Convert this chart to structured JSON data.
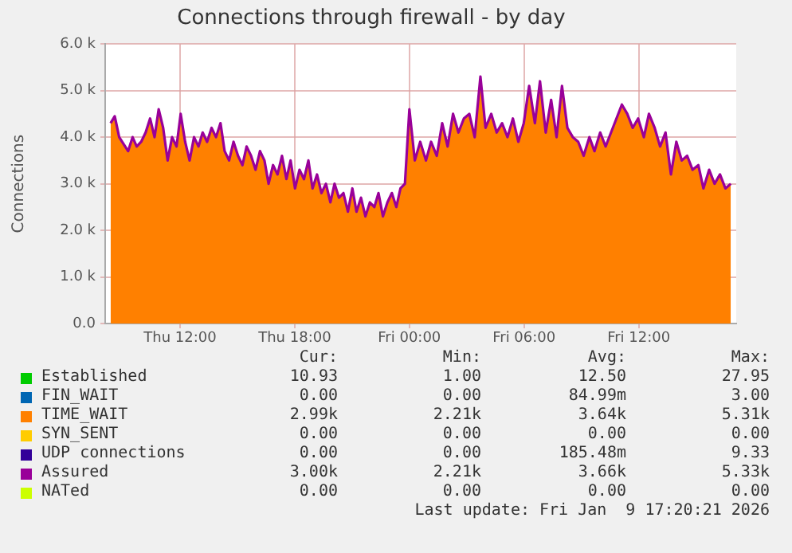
{
  "chart_data": {
    "type": "area",
    "title": "Connections through firewall - by day",
    "ylabel": "Connections",
    "xlim": [
      "2026-01-08T08:05",
      "2026-01-09T17:06"
    ],
    "xticks": [
      {
        "value": "2026-01-08T12:00",
        "label": "Thu 12:00"
      },
      {
        "value": "2026-01-08T18:00",
        "label": "Thu 18:00"
      },
      {
        "value": "2026-01-09T00:00",
        "label": "Fri 00:00"
      },
      {
        "value": "2026-01-09T06:00",
        "label": "Fri 06:00"
      },
      {
        "value": "2026-01-09T12:00",
        "label": "Fri 12:00"
      }
    ],
    "ylim": [
      0,
      6000
    ],
    "yticks": [
      {
        "value": 0,
        "label": "0.0"
      },
      {
        "value": 1000,
        "label": "1.0 k"
      },
      {
        "value": 2000,
        "label": "2.0 k"
      },
      {
        "value": 3000,
        "label": "3.0 k"
      },
      {
        "value": 4000,
        "label": "4.0 k"
      },
      {
        "value": 5000,
        "label": "5.0 k"
      },
      {
        "value": 6000,
        "label": "6.0 k"
      }
    ],
    "grid": true,
    "legend": "bottom",
    "x": [
      "2026-01-08T08:22",
      "2026-01-08T08:35",
      "2026-01-08T08:49",
      "2026-01-08T09:03",
      "2026-01-08T09:17",
      "2026-01-08T09:31",
      "2026-01-08T09:44",
      "2026-01-08T09:58",
      "2026-01-08T10:12",
      "2026-01-08T10:26",
      "2026-01-08T10:40",
      "2026-01-08T10:53",
      "2026-01-08T11:07",
      "2026-01-08T11:21",
      "2026-01-08T11:35",
      "2026-01-08T11:49",
      "2026-01-08T12:02",
      "2026-01-08T12:16",
      "2026-01-08T12:30",
      "2026-01-08T12:44",
      "2026-01-08T12:58",
      "2026-01-08T13:11",
      "2026-01-08T13:25",
      "2026-01-08T13:39",
      "2026-01-08T13:53",
      "2026-01-08T14:07",
      "2026-01-08T14:20",
      "2026-01-08T14:34",
      "2026-01-08T14:48",
      "2026-01-08T15:02",
      "2026-01-08T15:16",
      "2026-01-08T15:29",
      "2026-01-08T15:43",
      "2026-01-08T15:57",
      "2026-01-08T16:11",
      "2026-01-08T16:25",
      "2026-01-08T16:38",
      "2026-01-08T16:52",
      "2026-01-08T17:06",
      "2026-01-08T17:20",
      "2026-01-08T17:34",
      "2026-01-08T17:47",
      "2026-01-08T18:01",
      "2026-01-08T18:15",
      "2026-01-08T18:29",
      "2026-01-08T18:43",
      "2026-01-08T18:56",
      "2026-01-08T19:10",
      "2026-01-08T19:24",
      "2026-01-08T19:38",
      "2026-01-08T19:52",
      "2026-01-08T20:05",
      "2026-01-08T20:19",
      "2026-01-08T20:33",
      "2026-01-08T20:47",
      "2026-01-08T21:01",
      "2026-01-08T21:14",
      "2026-01-08T21:28",
      "2026-01-08T21:42",
      "2026-01-08T21:56",
      "2026-01-08T22:10",
      "2026-01-08T22:23",
      "2026-01-08T22:37",
      "2026-01-08T22:51",
      "2026-01-08T23:05",
      "2026-01-08T23:19",
      "2026-01-08T23:32",
      "2026-01-08T23:46",
      "2026-01-09T00:00",
      "2026-01-09T00:17",
      "2026-01-09T00:34",
      "2026-01-09T00:52",
      "2026-01-09T01:08",
      "2026-01-09T01:26",
      "2026-01-09T01:43",
      "2026-01-09T02:00",
      "2026-01-09T02:17",
      "2026-01-09T02:34",
      "2026-01-09T02:51",
      "2026-01-09T03:08",
      "2026-01-09T03:25",
      "2026-01-09T03:43",
      "2026-01-09T03:59",
      "2026-01-09T04:17",
      "2026-01-09T04:34",
      "2026-01-09T04:51",
      "2026-01-09T05:08",
      "2026-01-09T05:25",
      "2026-01-09T05:42",
      "2026-01-09T05:59",
      "2026-01-09T06:16",
      "2026-01-09T06:34",
      "2026-01-09T06:50",
      "2026-01-09T07:08",
      "2026-01-09T07:25",
      "2026-01-09T07:42",
      "2026-01-09T07:59",
      "2026-01-09T08:16",
      "2026-01-09T08:33",
      "2026-01-09T08:50",
      "2026-01-09T09:07",
      "2026-01-09T09:25",
      "2026-01-09T09:41",
      "2026-01-09T09:59",
      "2026-01-09T10:16",
      "2026-01-09T10:33",
      "2026-01-09T10:50",
      "2026-01-09T11:07",
      "2026-01-09T11:24",
      "2026-01-09T11:41",
      "2026-01-09T11:58",
      "2026-01-09T12:16",
      "2026-01-09T12:32",
      "2026-01-09T12:50",
      "2026-01-09T13:07",
      "2026-01-09T13:24",
      "2026-01-09T13:41",
      "2026-01-09T13:58",
      "2026-01-09T14:15",
      "2026-01-09T14:32",
      "2026-01-09T14:49",
      "2026-01-09T15:07",
      "2026-01-09T15:23",
      "2026-01-09T15:41",
      "2026-01-09T15:58",
      "2026-01-09T16:15",
      "2026-01-09T16:32",
      "2026-01-09T16:49"
    ],
    "series": [
      {
        "name": "Established",
        "color": "#00cc00",
        "type": "line",
        "values": [
          null,
          null,
          null,
          null,
          null,
          null,
          null,
          null,
          null,
          null,
          null,
          null,
          null,
          null,
          null,
          null,
          null,
          null,
          null,
          null,
          null,
          null,
          null,
          null,
          null,
          null,
          null,
          null,
          null,
          null,
          null,
          null,
          null,
          null,
          null,
          null,
          null,
          null,
          null,
          null,
          null,
          null,
          null,
          null,
          null,
          null,
          null,
          null,
          null,
          null,
          null,
          null,
          null,
          null,
          null,
          null,
          null,
          null,
          null,
          null,
          null,
          null,
          null,
          null,
          null,
          null,
          null,
          null,
          null,
          null,
          null,
          null,
          null,
          null,
          null,
          null,
          null,
          null,
          null,
          null,
          null,
          null,
          null,
          null,
          null,
          null,
          null,
          null,
          null,
          null,
          null,
          null,
          null,
          null,
          null,
          null,
          null,
          null,
          null,
          null,
          null,
          null,
          null,
          null,
          null,
          null,
          null,
          null,
          null,
          null,
          null,
          null,
          null,
          null,
          null,
          null,
          null,
          null,
          null,
          null,
          null,
          null,
          null,
          null,
          null,
          null,
          null,
          null
        ]
      },
      {
        "name": "FIN_WAIT",
        "color": "#0066b3",
        "type": "line",
        "values": [
          null,
          null,
          null,
          null,
          null,
          null,
          null,
          null,
          null,
          null,
          null,
          null,
          null,
          null,
          null,
          null,
          null,
          null,
          null,
          null,
          null,
          null,
          null,
          null,
          null,
          null,
          null,
          null,
          null,
          null,
          null,
          null,
          null,
          null,
          null,
          null,
          null,
          null,
          null,
          null,
          null,
          null,
          null,
          null,
          null,
          null,
          null,
          null,
          null,
          null,
          null,
          null,
          null,
          null,
          null,
          null,
          null,
          null,
          null,
          null,
          null,
          null,
          null,
          null,
          null,
          null,
          null,
          null,
          null,
          null,
          null,
          null,
          null,
          null,
          null,
          null,
          null,
          null,
          null,
          null,
          null,
          null,
          null,
          null,
          null,
          null,
          null,
          null,
          null,
          null,
          null,
          null,
          null,
          null,
          null,
          null,
          null,
          null,
          null,
          null,
          null,
          null,
          null,
          null,
          null,
          null,
          null,
          null,
          null,
          null,
          null,
          null,
          null,
          null,
          null,
          null,
          null,
          null,
          null,
          null,
          null,
          null,
          null,
          null,
          null,
          null,
          null,
          null
        ]
      },
      {
        "name": "TIME_WAIT",
        "color": "#ff8000",
        "values": [
          4300,
          4450,
          4000,
          3850,
          3700,
          4000,
          3800,
          3900,
          4100,
          4400,
          4000,
          4600,
          4200,
          3500,
          4000,
          3800,
          4500,
          3900,
          3500,
          4000,
          3800,
          4100,
          3900,
          4200,
          4000,
          4300,
          3700,
          3500,
          3900,
          3600,
          3400,
          3800,
          3600,
          3300,
          3700,
          3500,
          3000,
          3400,
          3200,
          3600,
          3100,
          3500,
          2900,
          3300,
          3100,
          3500,
          2900,
          3200,
          2800,
          3000,
          2600,
          3000,
          2700,
          2800,
          2400,
          2900,
          2400,
          2700,
          2300,
          2600,
          2500,
          2800,
          2300,
          2600,
          2800,
          2500,
          2900,
          3000,
          4600,
          3500,
          3900,
          3500,
          3900,
          3600,
          4300,
          3800,
          4500,
          4100,
          4400,
          4500,
          4000,
          5300,
          4200,
          4500,
          4100,
          4300,
          4000,
          4400,
          3900,
          4300,
          5100,
          4300,
          5200,
          4100,
          4800,
          4000,
          5100,
          4200,
          4000,
          3900,
          3600,
          4000,
          3700,
          4100,
          3800,
          4100,
          4400,
          4700,
          4500,
          4200,
          4400,
          4000,
          4500,
          4200,
          3800,
          4100,
          3200,
          3900,
          3500,
          3600,
          3300,
          3400,
          2900,
          3300,
          3000,
          3200,
          2900,
          3000
        ]
      },
      {
        "name": "SYN_SENT",
        "color": "#ffcc00",
        "type": "line",
        "values": [
          null,
          null,
          null,
          null,
          null,
          null,
          null,
          null,
          null,
          null,
          null,
          null,
          null,
          null,
          null,
          null,
          null,
          null,
          null,
          null,
          null,
          null,
          null,
          null,
          null,
          null,
          null,
          null,
          null,
          null,
          null,
          null,
          null,
          null,
          null,
          null,
          null,
          null,
          null,
          null,
          null,
          null,
          null,
          null,
          null,
          null,
          null,
          null,
          null,
          null,
          null,
          null,
          null,
          null,
          null,
          null,
          null,
          null,
          null,
          null,
          null,
          null,
          null,
          null,
          null,
          null,
          null,
          null,
          null,
          null,
          null,
          null,
          null,
          null,
          null,
          null,
          null,
          null,
          null,
          null,
          null,
          null,
          null,
          null,
          null,
          null,
          null,
          null,
          null,
          null,
          null,
          null,
          null,
          null,
          null,
          null,
          null,
          null,
          null,
          null,
          null,
          null,
          null,
          null,
          null,
          null,
          null,
          null,
          null,
          null,
          null,
          null,
          null,
          null,
          null,
          null,
          null,
          null,
          null,
          null,
          null,
          null,
          null,
          null,
          null,
          null,
          null,
          null
        ]
      },
      {
        "name": "UDP connections",
        "color": "#330099",
        "type": "line",
        "values": [
          null,
          null,
          null,
          null,
          null,
          null,
          null,
          null,
          null,
          null,
          null,
          null,
          null,
          null,
          null,
          null,
          null,
          null,
          null,
          null,
          null,
          null,
          null,
          null,
          null,
          null,
          null,
          null,
          null,
          null,
          null,
          null,
          null,
          null,
          null,
          null,
          null,
          null,
          null,
          null,
          null,
          null,
          null,
          null,
          null,
          null,
          null,
          null,
          null,
          null,
          null,
          null,
          null,
          null,
          null,
          null,
          null,
          null,
          null,
          null,
          null,
          null,
          null,
          null,
          null,
          null,
          null,
          null,
          null,
          null,
          null,
          null,
          null,
          null,
          null,
          null,
          null,
          null,
          null,
          null,
          null,
          null,
          null,
          null,
          null,
          null,
          null,
          null,
          null,
          null,
          null,
          null,
          null,
          null,
          null,
          null,
          null,
          null,
          null,
          null,
          null,
          null,
          null,
          null,
          null,
          null,
          null,
          null,
          null,
          null,
          null,
          null,
          null,
          null,
          null,
          null,
          null,
          null,
          null,
          null,
          null,
          null,
          null,
          null,
          null,
          null,
          null,
          null
        ]
      },
      {
        "name": "Assured",
        "color": "#990099",
        "type": "line",
        "values": [
          4300,
          4450,
          4000,
          3850,
          3700,
          4000,
          3800,
          3900,
          4100,
          4400,
          4000,
          4600,
          4200,
          3500,
          4000,
          3800,
          4500,
          3900,
          3500,
          4000,
          3800,
          4100,
          3900,
          4200,
          4000,
          4300,
          3700,
          3500,
          3900,
          3600,
          3400,
          3800,
          3600,
          3300,
          3700,
          3500,
          3000,
          3400,
          3200,
          3600,
          3100,
          3500,
          2900,
          3300,
          3100,
          3500,
          2900,
          3200,
          2800,
          3000,
          2600,
          3000,
          2700,
          2800,
          2400,
          2900,
          2400,
          2700,
          2300,
          2600,
          2500,
          2800,
          2300,
          2600,
          2800,
          2500,
          2900,
          3000,
          4600,
          3500,
          3900,
          3500,
          3900,
          3600,
          4300,
          3800,
          4500,
          4100,
          4400,
          4500,
          4000,
          5300,
          4200,
          4500,
          4100,
          4300,
          4000,
          4400,
          3900,
          4300,
          5100,
          4300,
          5200,
          4100,
          4800,
          4000,
          5100,
          4200,
          4000,
          3900,
          3600,
          4000,
          3700,
          4100,
          3800,
          4100,
          4400,
          4700,
          4500,
          4200,
          4400,
          4000,
          4500,
          4200,
          3800,
          4100,
          3200,
          3900,
          3500,
          3600,
          3300,
          3400,
          2900,
          3300,
          3000,
          3200,
          2900,
          3000
        ]
      },
      {
        "name": "NATed",
        "color": "#ccff00",
        "type": "line",
        "values": [
          null,
          null,
          null,
          null,
          null,
          null,
          null,
          null,
          null,
          null,
          null,
          null,
          null,
          null,
          null,
          null,
          null,
          null,
          null,
          null,
          null,
          null,
          null,
          null,
          null,
          null,
          null,
          null,
          null,
          null,
          null,
          null,
          null,
          null,
          null,
          null,
          null,
          null,
          null,
          null,
          null,
          null,
          null,
          null,
          null,
          null,
          null,
          null,
          null,
          null,
          null,
          null,
          null,
          null,
          null,
          null,
          null,
          null,
          null,
          null,
          null,
          null,
          null,
          null,
          null,
          null,
          null,
          null,
          null,
          null,
          null,
          null,
          null,
          null,
          null,
          null,
          null,
          null,
          null,
          null,
          null,
          null,
          null,
          null,
          null,
          null,
          null,
          null,
          null,
          null,
          null,
          null,
          null,
          null,
          null,
          null,
          null,
          null,
          null,
          null,
          null,
          null,
          null,
          null,
          null,
          null,
          null,
          null,
          null,
          null,
          null,
          null,
          null,
          null,
          null,
          null,
          null,
          null,
          null,
          null,
          null,
          null,
          null,
          null,
          null,
          null,
          null,
          null
        ]
      }
    ],
    "annotations": [
      "Cur:",
      "Min:",
      "Avg:",
      "Max:",
      "10.93",
      "1.00",
      "12.50",
      "27.95",
      "0.00",
      "0.00",
      "84.99m",
      "3.00",
      "2.99k",
      "2.21k",
      "3.64k",
      "5.31k",
      "0.00",
      "0.00",
      "0.00",
      "0.00",
      "0.00",
      "0.00",
      "185.48m",
      "9.33",
      "3.00k",
      "2.21k",
      "3.66k",
      "5.33k",
      "0.00",
      "0.00",
      "0.00",
      "0.00",
      "Last update: Fri Jan  9 17:20:21 2026"
    ]
  }
}
